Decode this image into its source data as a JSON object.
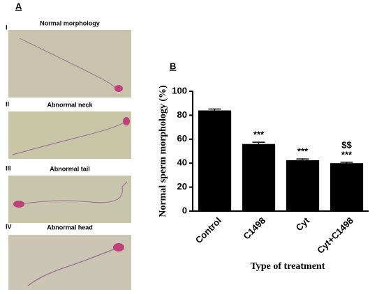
{
  "panel_a": {
    "label": "A",
    "images": [
      {
        "numeral": "I",
        "title": "Normal morphology"
      },
      {
        "numeral": "II",
        "title": "Abnormal neck"
      },
      {
        "numeral": "III",
        "title": "Abnormal tail"
      },
      {
        "numeral": "IV",
        "title": "Abnormal head"
      }
    ]
  },
  "chart_data": {
    "type": "bar",
    "label": "B",
    "ylabel": "Normal sperm morphology (%)",
    "xlabel": "Type of treatment",
    "categories": [
      "Control",
      "C1498",
      "Cyt",
      "Cyt+C1498"
    ],
    "values": [
      84,
      56,
      42.5,
      40
    ],
    "errors": [
      1.2,
      1.5,
      1,
      0.8
    ],
    "annotations": [
      null,
      [
        "***"
      ],
      [
        "***"
      ],
      [
        "$$",
        "***"
      ]
    ],
    "color": "#000000",
    "ylim": [
      0,
      100
    ],
    "yticks": [
      0,
      20,
      40,
      60,
      80,
      100
    ]
  }
}
